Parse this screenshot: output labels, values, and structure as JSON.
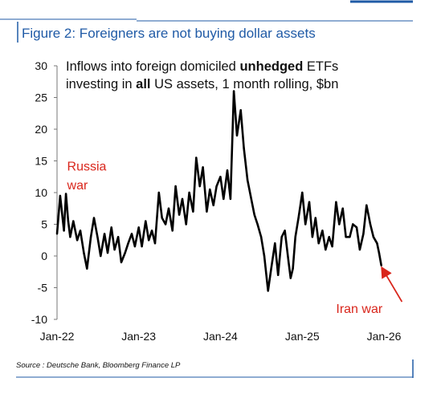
{
  "figure": {
    "title": "Figure 2: Foreigners are not buying dollar assets",
    "caption_parts": [
      {
        "text": "Inflows into foreign domiciled ",
        "bold": false
      },
      {
        "text": "unhedged",
        "bold": true
      },
      {
        "text": " ETFs",
        "bold": false
      }
    ],
    "caption_line2_parts": [
      {
        "text": "investing in ",
        "bold": false
      },
      {
        "text": "all",
        "bold": true
      },
      {
        "text": " US assets,  1 month rolling, $bn",
        "bold": false
      }
    ],
    "source": "Source : Deutsche Bank, Bloomberg Finance LP",
    "colors": {
      "accent": "#1f5aa6",
      "line": "#000000",
      "annotation": "#d9261c"
    }
  },
  "chart_data": {
    "type": "line",
    "title": "Inflows into foreign domiciled unhedged ETFs investing in all US assets,  1 month rolling, $bn",
    "xlabel": "",
    "ylabel": "",
    "ylim": [
      -10,
      30
    ],
    "yticks": [
      "30",
      "25",
      "20",
      "15",
      "10",
      "5",
      "0",
      "-5",
      "-10"
    ],
    "xticks": [
      "Jan-22",
      "Jan-23",
      "Jan-24",
      "Jan-25",
      "Jan-26"
    ],
    "grid": false,
    "series": [
      {
        "color": "#000000",
        "x": [
          "2022-01-01",
          "2022-01-15",
          "2022-02-01",
          "2022-02-10",
          "2022-02-20",
          "2022-03-01",
          "2022-03-15",
          "2022-04-01",
          "2022-04-15",
          "2022-05-01",
          "2022-05-15",
          "2022-06-01",
          "2022-06-15",
          "2022-07-01",
          "2022-07-15",
          "2022-08-01",
          "2022-08-15",
          "2022-09-01",
          "2022-09-15",
          "2022-10-01",
          "2022-10-15",
          "2022-11-01",
          "2022-11-15",
          "2022-12-01",
          "2022-12-15",
          "2023-01-01",
          "2023-01-15",
          "2023-02-01",
          "2023-02-15",
          "2023-03-01",
          "2023-03-15",
          "2023-04-01",
          "2023-04-15",
          "2023-05-01",
          "2023-05-15",
          "2023-06-01",
          "2023-06-15",
          "2023-07-01",
          "2023-07-15",
          "2023-08-01",
          "2023-08-15",
          "2023-09-01",
          "2023-09-15",
          "2023-10-01",
          "2023-10-15",
          "2023-11-01",
          "2023-11-15",
          "2023-12-01",
          "2023-12-15",
          "2024-01-01",
          "2024-01-15",
          "2024-02-01",
          "2024-02-15",
          "2024-03-01",
          "2024-03-15",
          "2024-04-01",
          "2024-04-15",
          "2024-05-01",
          "2024-05-15",
          "2024-06-01",
          "2024-06-15",
          "2024-07-01",
          "2024-07-15",
          "2024-08-01",
          "2024-08-15",
          "2024-09-01",
          "2024-09-15",
          "2024-10-01",
          "2024-10-15",
          "2024-11-01",
          "2024-11-10",
          "2024-11-20",
          "2024-12-01",
          "2024-12-15",
          "2025-01-01",
          "2025-01-15",
          "2025-02-01",
          "2025-02-15",
          "2025-03-01",
          "2025-03-15",
          "2025-04-01",
          "2025-04-15",
          "2025-05-01",
          "2025-05-15",
          "2025-06-01",
          "2025-06-15",
          "2025-07-01",
          "2025-07-15",
          "2025-08-01",
          "2025-08-15",
          "2025-09-01",
          "2025-09-15",
          "2025-10-01",
          "2025-10-15",
          "2025-11-01",
          "2025-11-15",
          "2025-12-01",
          "2025-12-10",
          "2025-12-20"
        ],
        "values": [
          3.5,
          9.5,
          4.0,
          9.8,
          5.5,
          3.0,
          5.5,
          2.5,
          4.0,
          0.5,
          -2.0,
          3.0,
          6.0,
          3.0,
          0.0,
          3.5,
          0.5,
          4.5,
          1.0,
          3.0,
          -1.0,
          0.5,
          2.0,
          3.5,
          1.5,
          4.5,
          1.5,
          5.5,
          2.5,
          4.0,
          2.0,
          10.0,
          6.0,
          5.0,
          7.5,
          4.0,
          11.0,
          6.5,
          9.0,
          5.0,
          10.0,
          7.0,
          15.5,
          11.0,
          14.0,
          7.0,
          10.5,
          8.0,
          11.0,
          12.5,
          9.0,
          13.5,
          9.0,
          26.0,
          19.0,
          23.0,
          17.0,
          12.0,
          9.5,
          6.5,
          5.0,
          3.0,
          0.0,
          -5.5,
          -2.0,
          2.0,
          -3.0,
          3.0,
          4.0,
          -1.0,
          -3.5,
          -2.0,
          3.0,
          6.0,
          10.0,
          5.0,
          8.5,
          3.0,
          6.0,
          2.0,
          4.0,
          1.0,
          3.0,
          1.5,
          8.5,
          5.0,
          7.5,
          3.0,
          3.0,
          5.0,
          4.5,
          1.0,
          3.5,
          8.0,
          5.0,
          3.0,
          2.0,
          0.5,
          -1.5
        ]
      }
    ],
    "annotations": [
      {
        "text": "Russia",
        "x": "2022-02-15",
        "y": 13.5
      },
      {
        "text": "war",
        "x": "2022-02-15",
        "y": 10.5
      },
      {
        "text": "Iran war",
        "x": "2025-06-01",
        "y": -9.0,
        "arrow_to": {
          "x": "2025-12-25",
          "y": -2.0
        }
      }
    ]
  }
}
